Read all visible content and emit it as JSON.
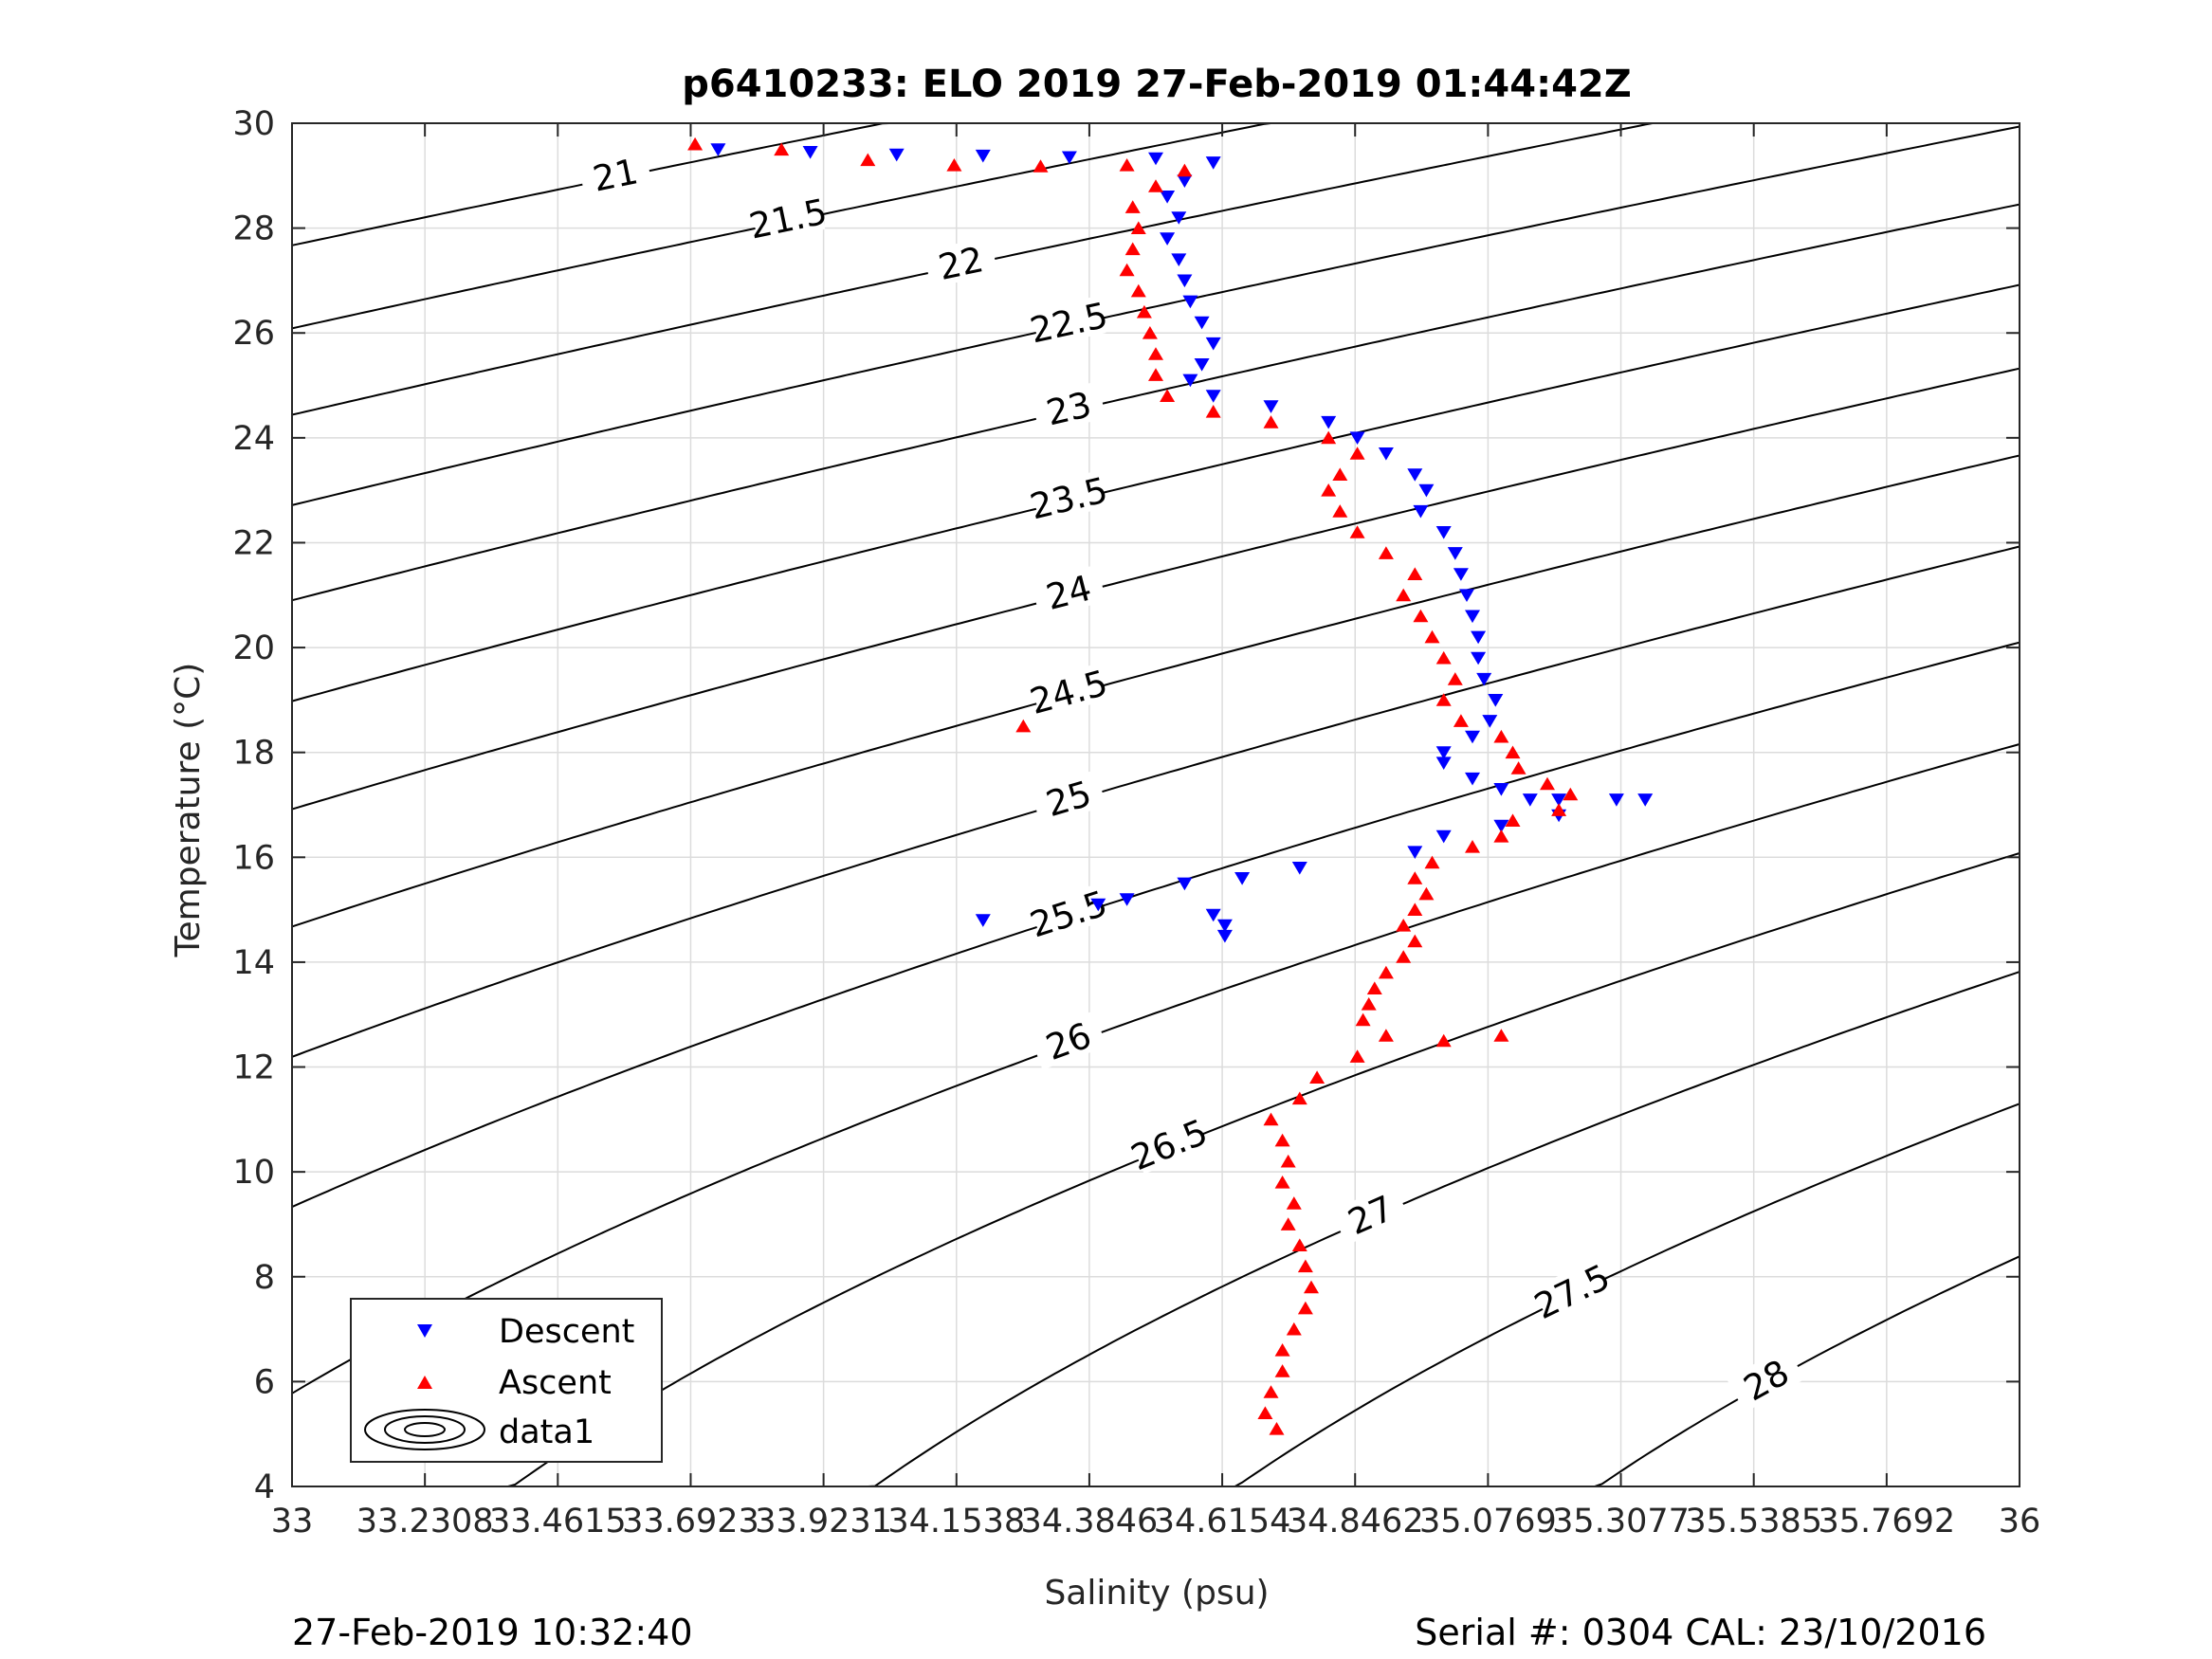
{
  "chart_data": {
    "type": "scatter",
    "title": "p6410233: ELO 2019 27-Feb-2019 01:44:42Z",
    "xlabel": "Salinity (psu)",
    "ylabel": "Temperature (°C)",
    "xlim": [
      33,
      36
    ],
    "ylim": [
      4,
      30
    ],
    "grid": true,
    "x_ticks": [
      "33",
      "33.2308",
      "33.4615",
      "33.6923",
      "33.9231",
      "34.1538",
      "34.3846",
      "34.6154",
      "34.8462",
      "35.0769",
      "35.3077",
      "35.5385",
      "35.7692",
      "36"
    ],
    "y_ticks": [
      "4",
      "6",
      "8",
      "10",
      "12",
      "14",
      "16",
      "18",
      "20",
      "22",
      "24",
      "26",
      "28",
      "30"
    ],
    "legend": {
      "placement": "bottom-left",
      "entries": [
        "Descent",
        "Ascent",
        "data1"
      ]
    },
    "density_contours": {
      "levels": [
        21,
        21.5,
        22,
        22.5,
        23,
        23.5,
        24,
        24.5,
        25,
        25.5,
        26,
        26.5,
        27,
        27.5,
        28
      ],
      "color": "#000000"
    },
    "series": [
      {
        "name": "Descent",
        "marker": "triangle-down",
        "color": "#0000ff",
        "points": [
          [
            33.74,
            29.5
          ],
          [
            33.9,
            29.45
          ],
          [
            34.05,
            29.4
          ],
          [
            34.2,
            29.38
          ],
          [
            34.35,
            29.35
          ],
          [
            34.5,
            29.33
          ],
          [
            34.6,
            29.25
          ],
          [
            34.55,
            28.9
          ],
          [
            34.52,
            28.6
          ],
          [
            34.54,
            28.2
          ],
          [
            34.52,
            27.8
          ],
          [
            34.54,
            27.4
          ],
          [
            34.55,
            27.0
          ],
          [
            34.56,
            26.6
          ],
          [
            34.58,
            26.2
          ],
          [
            34.6,
            25.8
          ],
          [
            34.58,
            25.4
          ],
          [
            34.56,
            25.1
          ],
          [
            34.6,
            24.8
          ],
          [
            34.7,
            24.6
          ],
          [
            34.8,
            24.3
          ],
          [
            34.85,
            24.0
          ],
          [
            34.9,
            23.7
          ],
          [
            34.95,
            23.3
          ],
          [
            34.97,
            23.0
          ],
          [
            34.96,
            22.6
          ],
          [
            35.0,
            22.2
          ],
          [
            35.02,
            21.8
          ],
          [
            35.03,
            21.4
          ],
          [
            35.04,
            21.0
          ],
          [
            35.05,
            20.6
          ],
          [
            35.06,
            20.2
          ],
          [
            35.06,
            19.8
          ],
          [
            35.07,
            19.4
          ],
          [
            35.09,
            19.0
          ],
          [
            35.08,
            18.6
          ],
          [
            35.05,
            18.3
          ],
          [
            35.0,
            18.0
          ],
          [
            35.0,
            17.8
          ],
          [
            35.05,
            17.5
          ],
          [
            35.1,
            17.3
          ],
          [
            35.15,
            17.1
          ],
          [
            35.2,
            17.1
          ],
          [
            35.3,
            17.1
          ],
          [
            35.35,
            17.1
          ],
          [
            35.2,
            16.8
          ],
          [
            35.1,
            16.6
          ],
          [
            35.0,
            16.4
          ],
          [
            34.95,
            16.1
          ],
          [
            34.75,
            15.8
          ],
          [
            34.65,
            15.6
          ],
          [
            34.55,
            15.5
          ],
          [
            34.45,
            15.2
          ],
          [
            34.6,
            14.9
          ],
          [
            34.62,
            14.7
          ],
          [
            34.62,
            14.5
          ],
          [
            34.4,
            15.1
          ],
          [
            34.2,
            14.8
          ]
        ]
      },
      {
        "name": "Ascent",
        "marker": "triangle-up",
        "color": "#ff0000",
        "points": [
          [
            33.7,
            29.6
          ],
          [
            33.85,
            29.5
          ],
          [
            34.0,
            29.3
          ],
          [
            34.15,
            29.2
          ],
          [
            34.3,
            29.18
          ],
          [
            34.45,
            29.2
          ],
          [
            34.55,
            29.1
          ],
          [
            34.5,
            28.8
          ],
          [
            34.46,
            28.4
          ],
          [
            34.47,
            28.0
          ],
          [
            34.46,
            27.6
          ],
          [
            34.45,
            27.2
          ],
          [
            34.47,
            26.8
          ],
          [
            34.48,
            26.4
          ],
          [
            34.49,
            26.0
          ],
          [
            34.5,
            25.6
          ],
          [
            34.5,
            25.2
          ],
          [
            34.52,
            24.8
          ],
          [
            34.6,
            24.5
          ],
          [
            34.7,
            24.3
          ],
          [
            34.8,
            24.0
          ],
          [
            34.85,
            23.7
          ],
          [
            34.82,
            23.3
          ],
          [
            34.8,
            23.0
          ],
          [
            34.82,
            22.6
          ],
          [
            34.85,
            22.2
          ],
          [
            34.9,
            21.8
          ],
          [
            34.95,
            21.4
          ],
          [
            34.93,
            21.0
          ],
          [
            34.96,
            20.6
          ],
          [
            34.98,
            20.2
          ],
          [
            35.0,
            19.8
          ],
          [
            35.02,
            19.4
          ],
          [
            35.0,
            19.0
          ],
          [
            35.03,
            18.6
          ],
          [
            35.1,
            18.3
          ],
          [
            35.12,
            18.0
          ],
          [
            35.13,
            17.7
          ],
          [
            35.18,
            17.4
          ],
          [
            35.22,
            17.2
          ],
          [
            35.2,
            16.9
          ],
          [
            35.12,
            16.7
          ],
          [
            35.1,
            16.4
          ],
          [
            35.05,
            16.2
          ],
          [
            34.98,
            15.9
          ],
          [
            34.95,
            15.6
          ],
          [
            34.97,
            15.3
          ],
          [
            34.95,
            15.0
          ],
          [
            34.93,
            14.7
          ],
          [
            34.95,
            14.4
          ],
          [
            34.93,
            14.1
          ],
          [
            34.9,
            13.8
          ],
          [
            34.88,
            13.5
          ],
          [
            34.87,
            13.2
          ],
          [
            34.86,
            12.9
          ],
          [
            34.9,
            12.6
          ],
          [
            35.0,
            12.5
          ],
          [
            35.1,
            12.6
          ],
          [
            34.85,
            12.2
          ],
          [
            34.78,
            11.8
          ],
          [
            34.75,
            11.4
          ],
          [
            34.7,
            11.0
          ],
          [
            34.72,
            10.6
          ],
          [
            34.73,
            10.2
          ],
          [
            34.72,
            9.8
          ],
          [
            34.74,
            9.4
          ],
          [
            34.73,
            9.0
          ],
          [
            34.75,
            8.6
          ],
          [
            34.76,
            8.2
          ],
          [
            34.77,
            7.8
          ],
          [
            34.76,
            7.4
          ],
          [
            34.74,
            7.0
          ],
          [
            34.72,
            6.6
          ],
          [
            34.72,
            6.2
          ],
          [
            34.7,
            5.8
          ],
          [
            34.69,
            5.4
          ],
          [
            34.71,
            5.1
          ],
          [
            34.27,
            18.5
          ]
        ]
      }
    ],
    "footer": {
      "left": "27-Feb-2019 10:32:40",
      "right": "Serial #: 0304  CAL: 23/10/2016"
    }
  }
}
